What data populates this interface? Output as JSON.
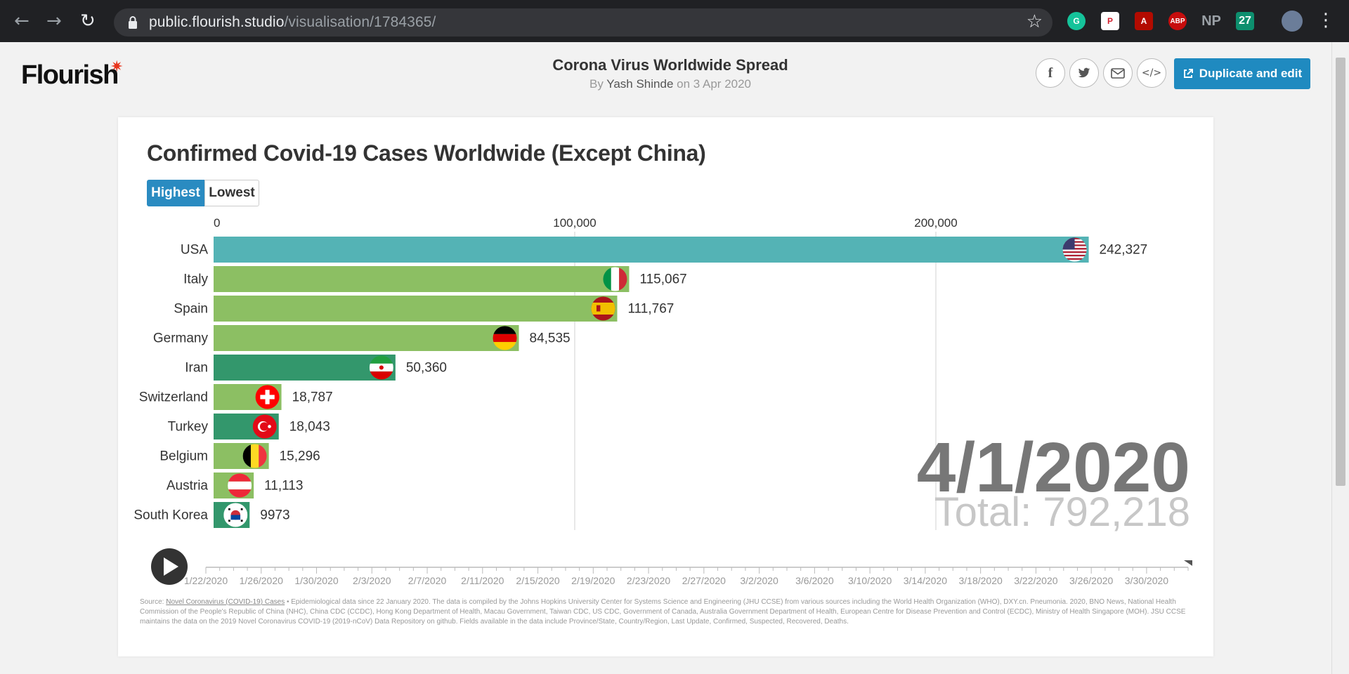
{
  "browser": {
    "url_host": "public.flourish.studio",
    "url_path": "/visualisation/1784365/",
    "extensions": [
      "G",
      "P",
      "A",
      "ABP",
      "NP",
      "27"
    ]
  },
  "header": {
    "logo": "Flourish",
    "title": "Corona Virus Worldwide Spread",
    "by_prefix": "By",
    "author": "Yash Shinde",
    "date_text": "on 3 Apr 2020",
    "duplicate_label": "Duplicate and edit"
  },
  "chart": {
    "title": "Confirmed Covid-19 Cases Worldwide (Except China)",
    "toggle_highest": "Highest",
    "toggle_lowest": "Lowest",
    "date": "4/1/2020",
    "total": "Total: 792,218"
  },
  "chart_data": {
    "type": "bar",
    "orientation": "horizontal",
    "title": "Confirmed Covid-19 Cases Worldwide (Except China)",
    "categories": [
      "USA",
      "Italy",
      "Spain",
      "Germany",
      "Iran",
      "Switzerland",
      "Turkey",
      "Belgium",
      "Austria",
      "South Korea"
    ],
    "values": [
      242327,
      115067,
      111767,
      84535,
      50360,
      18787,
      18043,
      15296,
      11113,
      9973
    ],
    "value_labels": [
      "242,327",
      "115,067",
      "111,767",
      "84,535",
      "50,360",
      "18,787",
      "18,043",
      "15,296",
      "11,113",
      "9973"
    ],
    "bar_colors": [
      "#54b3b5",
      "#8cbf63",
      "#8cbf63",
      "#8cbf63",
      "#33976c",
      "#8cbf63",
      "#33976c",
      "#8cbf63",
      "#8cbf63",
      "#33976c"
    ],
    "flags": [
      "us-flag-icon",
      "italy-flag-icon",
      "spain-flag-icon",
      "germany-flag-icon",
      "iran-flag-icon",
      "switzerland-flag-icon",
      "turkey-flag-icon",
      "belgium-flag-icon",
      "austria-flag-icon",
      "south-korea-flag-icon"
    ],
    "x_ticks": [
      0,
      100000,
      200000
    ],
    "x_tick_labels": [
      "0",
      "100,000",
      "200,000"
    ],
    "xlim": [
      0,
      270000
    ],
    "grid": true,
    "timeline_labels": [
      "1/22/2020",
      "1/26/2020",
      "1/30/2020",
      "2/3/2020",
      "2/7/2020",
      "2/11/2020",
      "2/15/2020",
      "2/19/2020",
      "2/23/2020",
      "2/27/2020",
      "3/2/2020",
      "3/6/2020",
      "3/10/2020",
      "3/14/2020",
      "3/18/2020",
      "3/22/2020",
      "3/26/2020",
      "3/30/2020"
    ],
    "timeline_position": 1.0
  },
  "footnote": {
    "source_prefix": "Source:",
    "source_link": "Novel Coronavirus (COVID-19) Cases",
    "text": "• Epidemiological data since 22 January 2020. The data is compiled by the Johns Hopkins University Center for Systems Science and Engineering (JHU CCSE) from various sources including the World Health Organization (WHO), DXY.cn. Pneumonia. 2020, BNO News, National Health Commission of the People's Republic of China (NHC), China CDC (CCDC), Hong Kong Department of Health, Macau Government, Taiwan CDC, US CDC, Government of Canada, Australia Government Department of Health, European Centre for Disease Prevention and Control (ECDC), Ministry of Health Singapore (MOH). JSU CCSE maintains the data on the 2019 Novel Coronavirus COVID-19 (2019-nCoV) Data Repository on github. Fields available in the data include Province/State, Country/Region, Last Update, Confirmed, Suspected, Recovered, Deaths."
  }
}
